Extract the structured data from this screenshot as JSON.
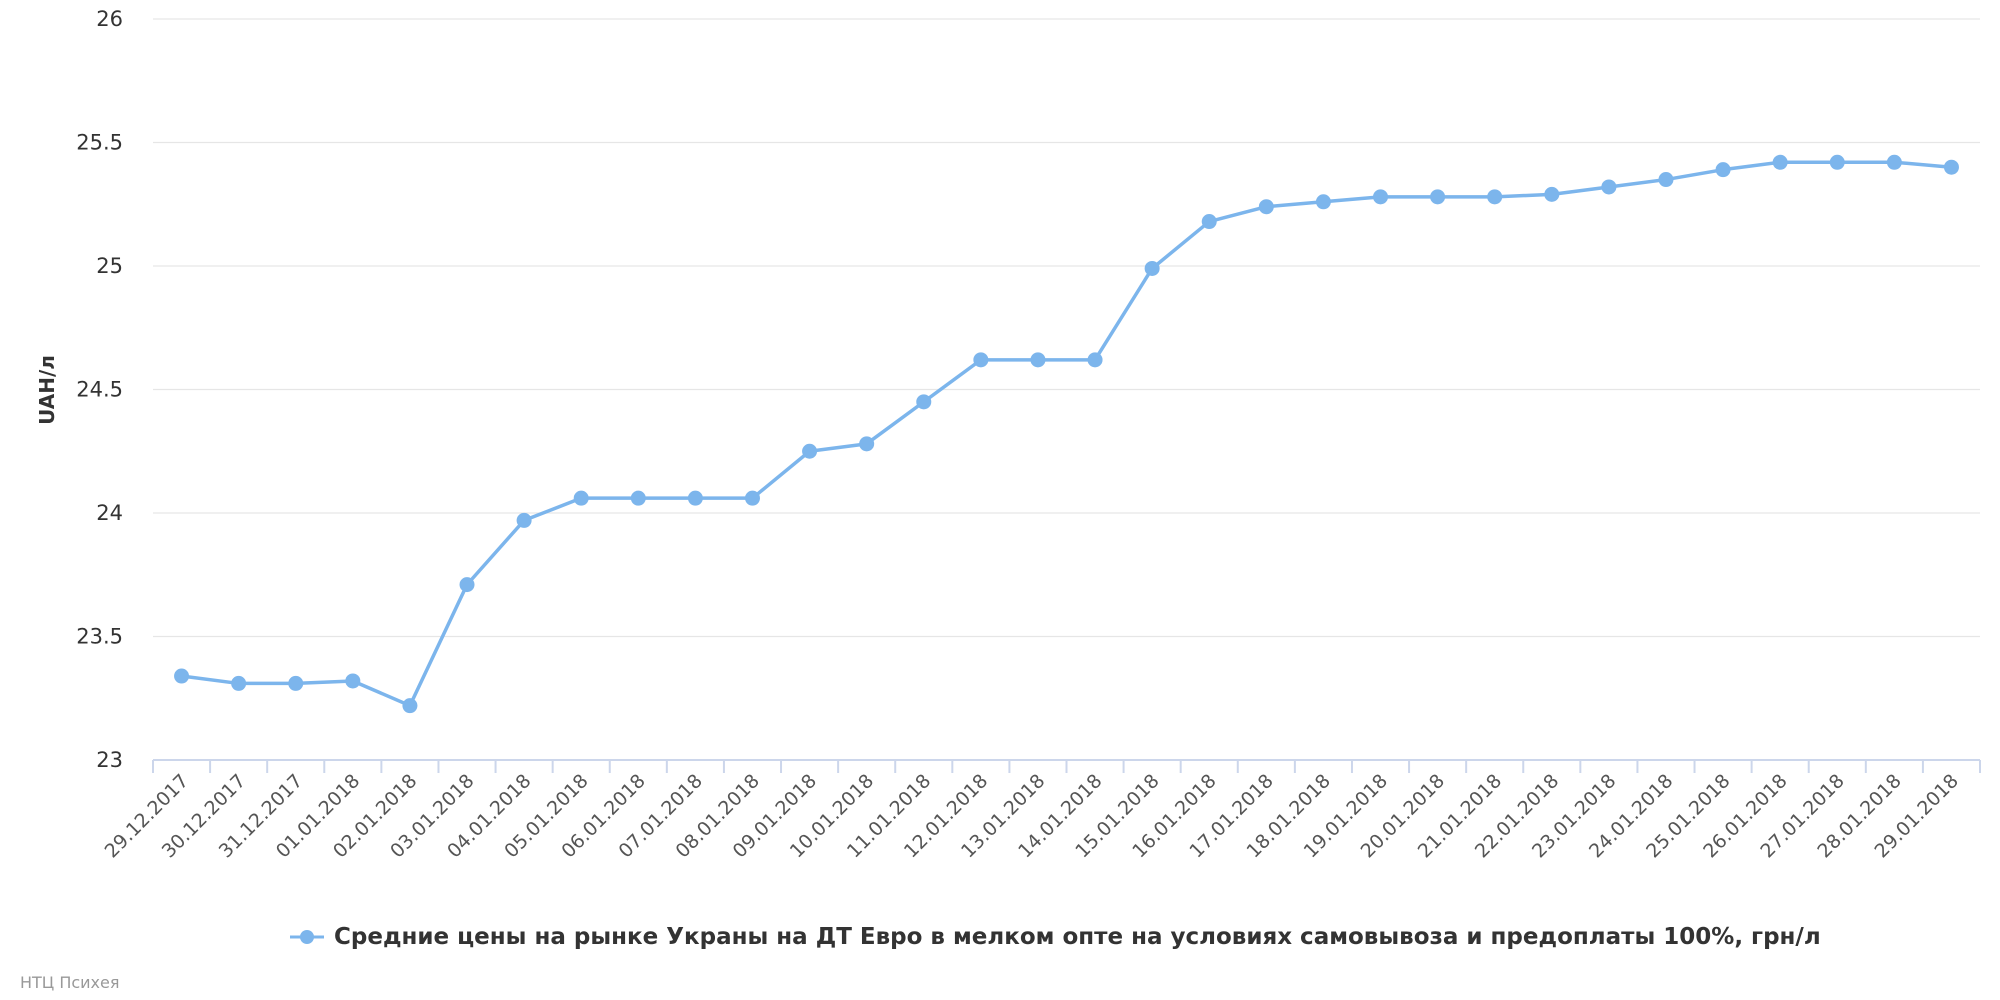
{
  "chart_data": {
    "type": "line",
    "title": "",
    "xlabel": "",
    "ylabel": "UAH/л",
    "ylim": [
      23,
      26
    ],
    "yticks": [
      "23",
      "23.5",
      "24",
      "24.5",
      "25",
      "25.5",
      "26"
    ],
    "grid": true,
    "legend_position": "bottom",
    "categories": [
      "29.12.2017",
      "30.12.2017",
      "31.12.2017",
      "01.01.2018",
      "02.01.2018",
      "03.01.2018",
      "04.01.2018",
      "05.01.2018",
      "06.01.2018",
      "07.01.2018",
      "08.01.2018",
      "09.01.2018",
      "10.01.2018",
      "11.01.2018",
      "12.01.2018",
      "13.01.2018",
      "14.01.2018",
      "15.01.2018",
      "16.01.2018",
      "17.01.2018",
      "18.01.2018",
      "19.01.2018",
      "20.01.2018",
      "21.01.2018",
      "22.01.2018",
      "23.01.2018",
      "24.01.2018",
      "25.01.2018",
      "26.01.2018",
      "27.01.2018",
      "28.01.2018",
      "29.01.2018"
    ],
    "series": [
      {
        "name": "Средние цены на рынке Украны на ДТ Евро в мелком опте на условиях самовывоза и предоплаты 100%, грн/л",
        "color": "#7cb5ec",
        "values": [
          23.34,
          23.31,
          23.31,
          23.32,
          23.22,
          23.71,
          23.97,
          24.06,
          24.06,
          24.06,
          24.06,
          24.25,
          24.28,
          24.45,
          24.62,
          24.62,
          24.62,
          24.99,
          25.18,
          25.24,
          25.26,
          25.28,
          25.28,
          25.28,
          25.29,
          25.32,
          25.35,
          25.39,
          25.42,
          25.42,
          25.42,
          25.4
        ]
      }
    ]
  },
  "credits": "НТЦ Психея"
}
